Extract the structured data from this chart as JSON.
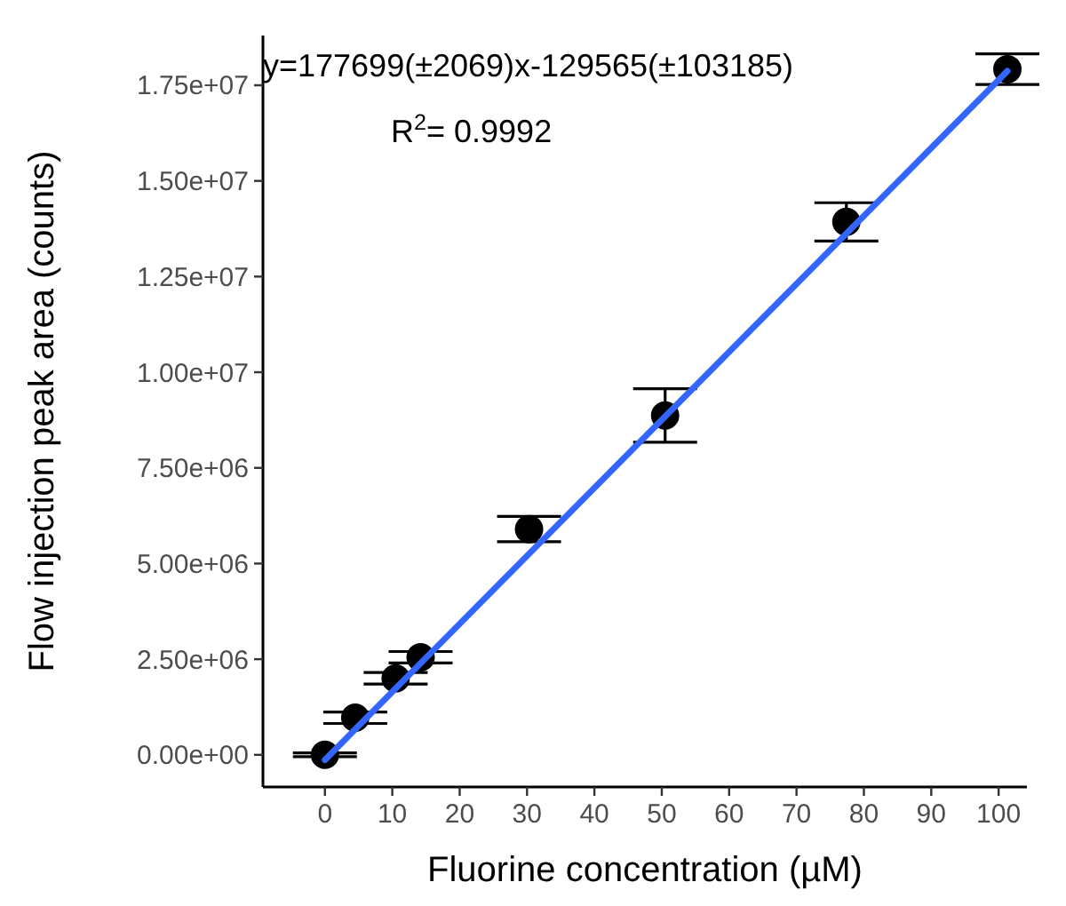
{
  "chart_data": {
    "type": "scatter",
    "xlabel": "Fluorine concentration (µM)",
    "ylabel": "Flow injection peak area (counts)",
    "xlim": [
      -9.2,
      104.2
    ],
    "ylim": [
      -840000,
      18800000
    ],
    "xticks": [
      0,
      10,
      20,
      30,
      40,
      50,
      60,
      70,
      80,
      90,
      100
    ],
    "yticks": [
      {
        "value": 0,
        "label": "0.00e+00"
      },
      {
        "value": 2500000,
        "label": "2.50e+06"
      },
      {
        "value": 5000000,
        "label": "5.00e+06"
      },
      {
        "value": 7500000,
        "label": "7.50e+06"
      },
      {
        "value": 10000000,
        "label": "1.00e+07"
      },
      {
        "value": 12500000,
        "label": "1.25e+07"
      },
      {
        "value": 15000000,
        "label": "1.50e+07"
      },
      {
        "value": 17500000,
        "label": "1.75e+07"
      }
    ],
    "grid": false,
    "series": [
      {
        "marker": "circle",
        "color": "#000000",
        "x": [
          0,
          4.5,
          10.5,
          14.2,
          30.3,
          50.5,
          77.4,
          101.3
        ],
        "values": [
          0,
          970000,
          2000000,
          2550000,
          5900000,
          8870000,
          13930000,
          17920000
        ],
        "errors": [
          50000,
          150000,
          150000,
          150000,
          330000,
          700000,
          500000,
          400000
        ]
      },
      {
        "type": "line",
        "color": "#3366ff",
        "x": [
          0,
          101.3
        ],
        "values": [
          -130000,
          17870000
        ]
      }
    ],
    "annotations": [
      "y=177699(±2069)x-129565(±103185)",
      "R$^{2}$= 0.9992"
    ]
  }
}
